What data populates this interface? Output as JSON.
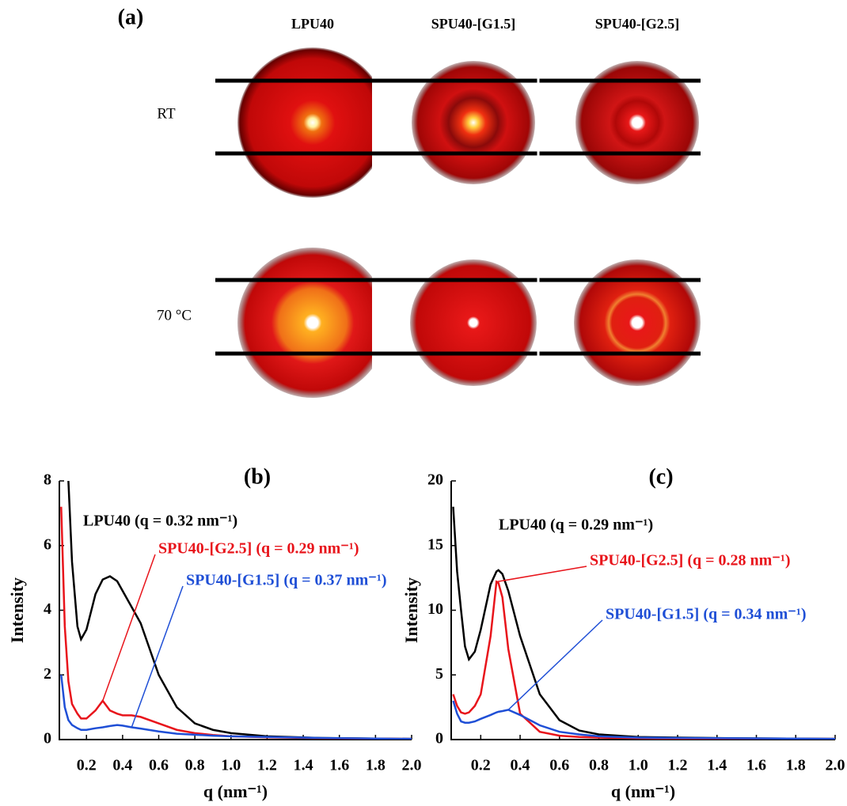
{
  "panel_a": {
    "label": "(a)",
    "columns": [
      "LPU40",
      "SPU40-[G1.5]",
      "SPU40-[G2.5]"
    ],
    "rows": [
      "RT",
      "70 °C"
    ]
  },
  "chart_data": [
    {
      "type": "line",
      "title": "(b)",
      "x_label": "q (nm⁻¹)",
      "y_label": "Intensity",
      "x": [
        0.06,
        0.08,
        0.1,
        0.12,
        0.15,
        0.17,
        0.2,
        0.25,
        0.29,
        0.33,
        0.37,
        0.4,
        0.45,
        0.5,
        0.6,
        0.7,
        0.8,
        0.9,
        1.0,
        1.2,
        1.5,
        2.0
      ],
      "series": [
        {
          "name": "LPU40",
          "color": "#000000",
          "values": [
            null,
            null,
            8,
            5.5,
            3.5,
            3.1,
            3.4,
            4.5,
            4.95,
            5.05,
            4.9,
            4.6,
            4.1,
            3.6,
            2.0,
            1.0,
            0.5,
            0.3,
            0.2,
            0.1,
            0.05,
            0.02
          ]
        },
        {
          "name": "SPU40-[G2.5]",
          "color": "#e8141b",
          "values": [
            7.2,
            3.5,
            1.8,
            1.1,
            0.8,
            0.65,
            0.65,
            0.9,
            1.2,
            0.9,
            0.8,
            0.75,
            0.75,
            0.7,
            0.5,
            0.3,
            0.2,
            0.14,
            0.1,
            0.07,
            0.04,
            0.02
          ]
        },
        {
          "name": "SPU40-[G1.5]",
          "color": "#1f4fd6",
          "values": [
            2.0,
            1.0,
            0.6,
            0.45,
            0.35,
            0.3,
            0.3,
            0.35,
            0.38,
            0.42,
            0.45,
            0.43,
            0.38,
            0.34,
            0.25,
            0.18,
            0.15,
            0.12,
            0.1,
            0.08,
            0.05,
            0.02
          ]
        }
      ],
      "annotations": [
        {
          "text": "LPU40 (q = 0.32 nm⁻¹)",
          "color": "#000000"
        },
        {
          "text": "SPU40-[G2.5] (q = 0.29 nm⁻¹)",
          "color": "#e8141b"
        },
        {
          "text": "SPU40-[G1.5] (q = 0.37 nm⁻¹)",
          "color": "#1f4fd6"
        }
      ],
      "xlim": [
        0.05,
        2.0
      ],
      "ylim": [
        0,
        8
      ],
      "xticks": [
        0.2,
        0.4,
        0.6,
        0.8,
        {
          "value": 1,
          "label": "1.0"
        },
        1.2,
        1.4,
        1.6,
        1.8,
        {
          "value": 2,
          "label": "2.0"
        }
      ],
      "yticks": [
        0,
        2,
        4,
        6,
        8
      ]
    },
    {
      "type": "line",
      "title": "(c)",
      "x_label": "q (nm⁻¹)",
      "y_label": "Intensity",
      "x": [
        0.06,
        0.08,
        0.1,
        0.12,
        0.14,
        0.17,
        0.2,
        0.25,
        0.28,
        0.29,
        0.31,
        0.34,
        0.4,
        0.5,
        0.6,
        0.7,
        0.8,
        1.0,
        1.2,
        1.5,
        2.0
      ],
      "series": [
        {
          "name": "LPU40",
          "color": "#000000",
          "values": [
            18,
            13,
            10,
            7.2,
            6.2,
            6.8,
            8.5,
            12,
            13,
            13.1,
            12.8,
            11.5,
            8,
            3.5,
            1.5,
            0.7,
            0.4,
            0.2,
            0.15,
            0.1,
            0.05
          ]
        },
        {
          "name": "SPU40-[G2.5]",
          "color": "#e8141b",
          "values": [
            3.5,
            2.6,
            2.1,
            2.0,
            2.1,
            2.6,
            3.5,
            8,
            12.2,
            12.1,
            11,
            7,
            2,
            0.6,
            0.3,
            0.2,
            0.15,
            0.1,
            0.08,
            0.06,
            0.05
          ]
        },
        {
          "name": "SPU40-[G1.5]",
          "color": "#1f4fd6",
          "values": [
            3,
            2,
            1.4,
            1.3,
            1.3,
            1.4,
            1.6,
            1.9,
            2.1,
            2.15,
            2.2,
            2.3,
            1.9,
            1.1,
            0.6,
            0.4,
            0.25,
            0.15,
            0.12,
            0.1,
            0.05
          ]
        }
      ],
      "annotations": [
        {
          "text": "LPU40 (q = 0.29 nm⁻¹)",
          "color": "#000000"
        },
        {
          "text": "SPU40-[G2.5] (q = 0.28 nm⁻¹)",
          "color": "#e8141b"
        },
        {
          "text": "SPU40-[G1.5] (q = 0.34 nm⁻¹)",
          "color": "#1f4fd6"
        }
      ],
      "xlim": [
        0.05,
        2.0
      ],
      "ylim": [
        0,
        20
      ],
      "xticks": [
        0.2,
        0.4,
        0.6,
        0.8,
        {
          "value": 1,
          "label": "1.0"
        },
        1.2,
        1.4,
        1.6,
        1.8,
        {
          "value": 2,
          "label": "2.0"
        }
      ],
      "yticks": [
        0,
        5,
        10,
        15,
        20
      ]
    }
  ]
}
